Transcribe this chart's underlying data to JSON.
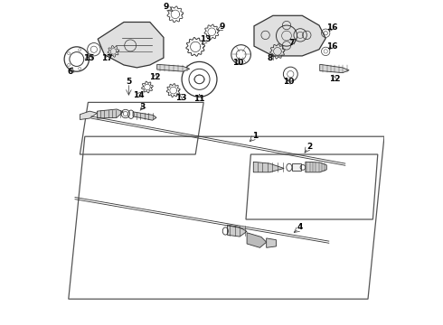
{
  "bg_color": "#ffffff",
  "line_color": "#555555",
  "dark_color": "#333333",
  "light_gray": "#aaaaaa",
  "fig_width": 4.9,
  "fig_height": 3.6,
  "dpi": 100
}
